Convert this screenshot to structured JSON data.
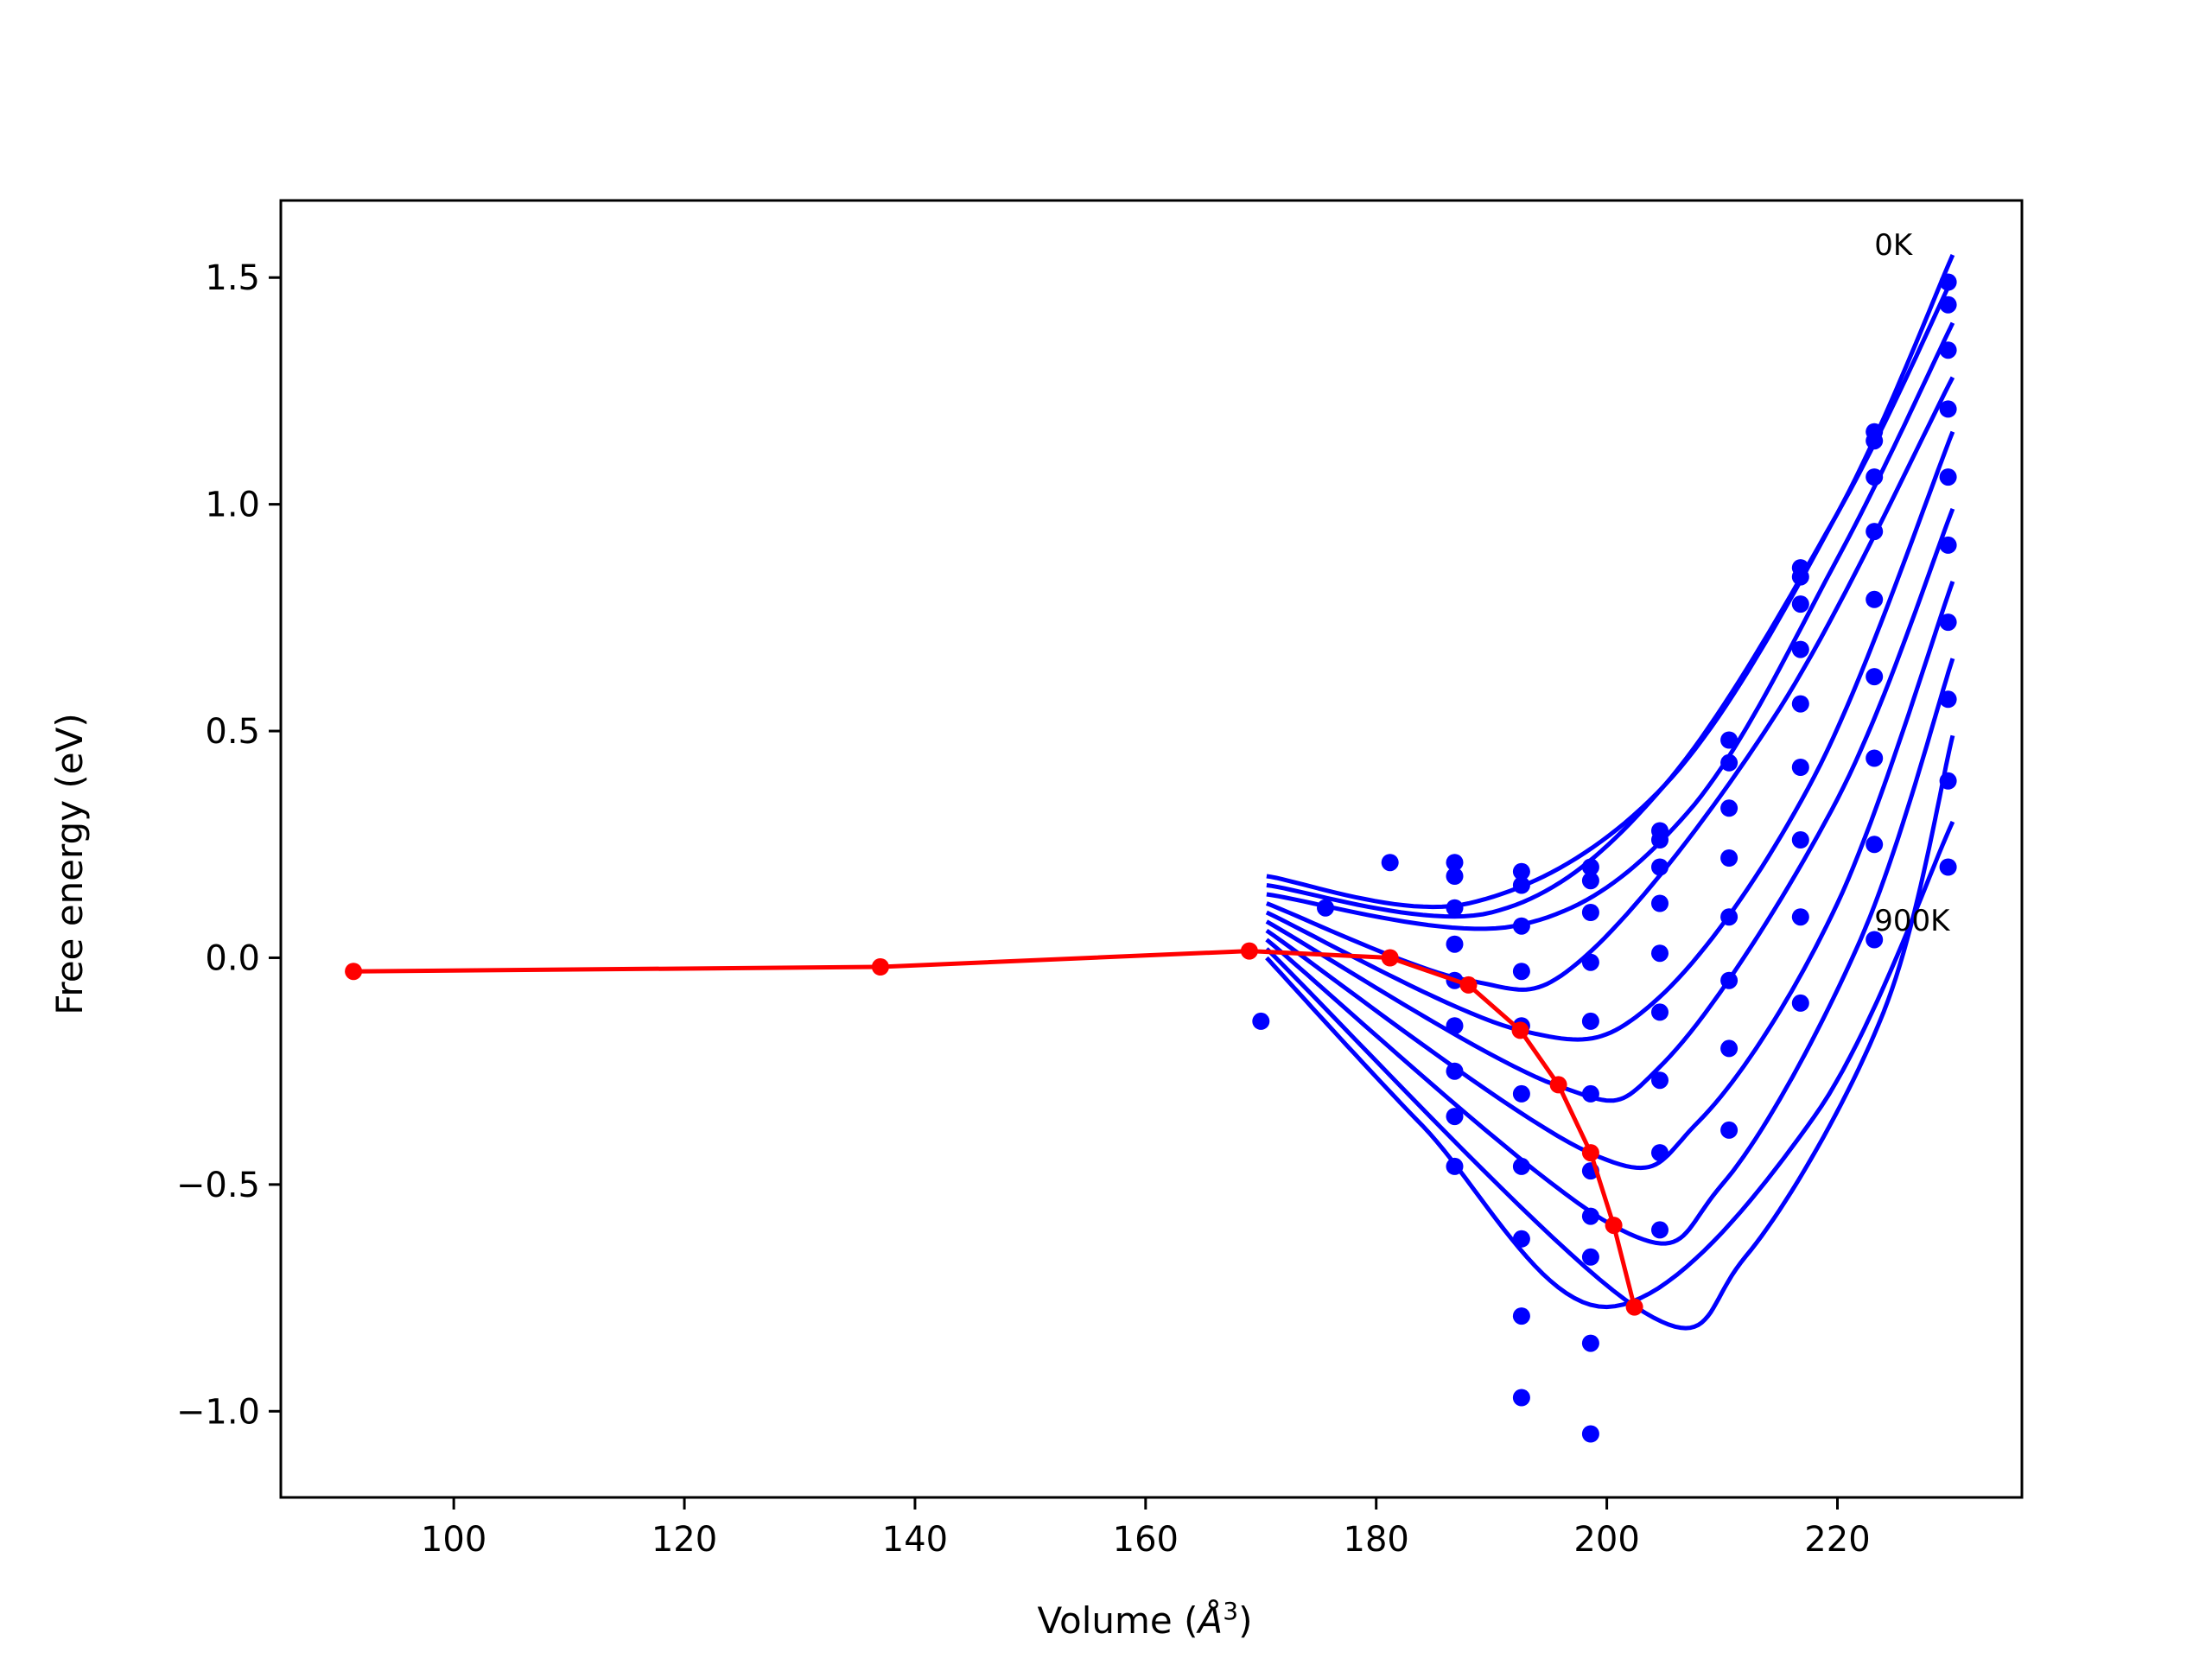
{
  "chart_data": {
    "type": "line",
    "title": "",
    "xlabel": "Volume (",
    "xlabel_symbol": "Å",
    "xlabel_sup": "3",
    "xlabel_close": ")",
    "ylabel": "Free energy (eV)",
    "xlim": [
      85,
      236
    ],
    "ylim": [
      -1.19,
      1.67
    ],
    "xticks": [
      100,
      120,
      140,
      160,
      180,
      200,
      220
    ],
    "yticks": [
      -1.0,
      -0.5,
      0.0,
      0.5,
      1.0,
      1.5
    ],
    "xtick_labels": [
      "100",
      "120",
      "140",
      "160",
      "180",
      "200",
      "220"
    ],
    "ytick_labels": [
      "−1.0",
      "−0.5",
      "0.0",
      "0.5",
      "1.0",
      "1.5"
    ],
    "grid": false,
    "legend": "none",
    "annotations": [
      {
        "text": "0K",
        "x": 223.2,
        "y": 1.55
      },
      {
        "text": "900K",
        "x": 223.2,
        "y": 0.06
      }
    ],
    "colors": {
      "fit": "#0000ff",
      "points": "#0000ff",
      "minimum": "#ff0000"
    },
    "fit_curves": [
      {
        "x": [
          170.5,
          188,
          205,
          220,
          230
        ],
        "y": [
          0.18,
          0.12,
          0.38,
          0.98,
          1.55
        ]
      },
      {
        "x": [
          170.5,
          190,
          205,
          220,
          230
        ],
        "y": [
          0.16,
          0.1,
          0.38,
          0.98,
          1.5
        ]
      },
      {
        "x": [
          170.5,
          192,
          207,
          220,
          230
        ],
        "y": [
          0.14,
          0.07,
          0.32,
          0.88,
          1.4
        ]
      },
      {
        "x": [
          170.5,
          188,
          198,
          215,
          230
        ],
        "y": [
          0.12,
          -0.05,
          0.0,
          0.55,
          1.28
        ]
      },
      {
        "x": [
          170.5,
          192.5,
          204,
          218,
          230
        ],
        "y": [
          0.1,
          -0.16,
          -0.1,
          0.4,
          1.16
        ]
      },
      {
        "x": [
          170.5,
          195.5,
          205,
          220,
          230
        ],
        "y": [
          0.08,
          -0.28,
          -0.23,
          0.35,
          0.99
        ]
      },
      {
        "x": [
          170.5,
          198.5,
          208,
          220,
          230
        ],
        "y": [
          0.06,
          -0.43,
          -0.36,
          0.12,
          0.83
        ]
      },
      {
        "x": [
          170.5,
          200.5,
          210,
          222,
          230
        ],
        "y": [
          0.04,
          -0.59,
          -0.5,
          0.04,
          0.66
        ]
      },
      {
        "x": [
          170.5,
          202.5,
          212,
          224,
          230
        ],
        "y": [
          0.02,
          -0.77,
          -0.66,
          -0.12,
          0.49
        ]
      },
      {
        "x": [
          170.5,
          184,
          200,
          218,
          230
        ],
        "y": [
          0.0,
          -0.37,
          -0.77,
          -0.35,
          0.3
        ]
      }
    ],
    "scatter_points": {
      "x": [
        170,
        175.6,
        181.2,
        186.8,
        186.8,
        186.8,
        186.8,
        186.8,
        186.8,
        186.8,
        186.8,
        186.8,
        192.6,
        192.6,
        192.6,
        192.6,
        192.6,
        192.6,
        192.6,
        192.6,
        192.6,
        192.6,
        198.6,
        198.6,
        198.6,
        198.6,
        198.6,
        198.6,
        198.6,
        198.6,
        198.6,
        198.6,
        198.6,
        204.6,
        204.6,
        204.6,
        204.6,
        204.6,
        204.6,
        204.6,
        204.6,
        204.6,
        210.6,
        210.6,
        210.6,
        210.6,
        210.6,
        210.6,
        210.6,
        210.6,
        216.8,
        216.8,
        216.8,
        216.8,
        216.8,
        216.8,
        216.8,
        216.8,
        216.8,
        223.2,
        223.2,
        223.2,
        223.2,
        223.2,
        223.2,
        223.2,
        223.2,
        223.2,
        229.6,
        229.6,
        229.6,
        229.6,
        229.6,
        229.6,
        229.6,
        229.6,
        229.6,
        229.6
      ],
      "y": [
        -0.14,
        0.11,
        0.21,
        0.21,
        0.18,
        0.11,
        0.03,
        -0.05,
        -0.15,
        -0.25,
        -0.35,
        -0.46,
        0.19,
        0.16,
        0.07,
        -0.03,
        -0.15,
        -0.3,
        -0.46,
        -0.62,
        -0.79,
        -0.97,
        0.2,
        0.17,
        0.1,
        -0.01,
        -0.14,
        -0.3,
        -0.47,
        -0.66,
        -0.85,
        -1.05,
        -0.57,
        0.28,
        0.26,
        0.2,
        0.12,
        0.01,
        -0.12,
        -0.27,
        -0.43,
        -0.6,
        0.48,
        0.43,
        0.33,
        0.22,
        0.09,
        -0.05,
        -0.2,
        -0.38,
        0.86,
        0.84,
        0.78,
        0.68,
        0.56,
        0.42,
        0.26,
        0.09,
        -0.1,
        1.16,
        1.14,
        1.06,
        0.94,
        0.79,
        0.62,
        0.44,
        0.25,
        0.04,
        1.49,
        1.44,
        1.34,
        1.21,
        1.06,
        0.91,
        0.74,
        0.57,
        0.39,
        0.2
      ]
    },
    "minimum_series": {
      "x": [
        91.3,
        137,
        169,
        181.2,
        188,
        192.5,
        195.8,
        198.6,
        200.6,
        202.4
      ],
      "y": [
        -0.03,
        -0.02,
        0.015,
        0.0,
        -0.06,
        -0.16,
        -0.28,
        -0.43,
        -0.59,
        -0.77
      ]
    }
  }
}
